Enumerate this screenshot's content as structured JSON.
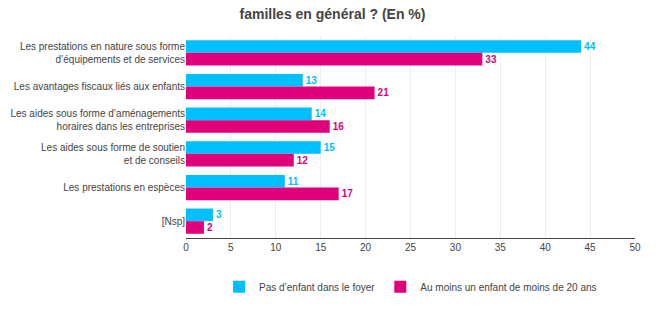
{
  "chart_data": {
    "type": "bar",
    "orientation": "horizontal",
    "title": "familles en général ? (En %)",
    "categories": [
      "Les prestations en nature sous forme\nd’équipements et de services",
      "Les avantages fiscaux liés aux enfants",
      "Les aides sous forme d’aménagements\nhoraires dans les entreprises",
      "Les aides sous forme de soutien\net de conseils",
      "Les prestations en espèces",
      "[Nsp]"
    ],
    "series": [
      {
        "name": "Pas d’enfant dans le foyer",
        "color": "#00BFFF",
        "values": [
          44,
          13,
          14,
          15,
          11,
          3
        ]
      },
      {
        "name": "Au moins un enfant de moins de 20 ans",
        "color": "#E0007A",
        "values": [
          33,
          21,
          16,
          12,
          17,
          2
        ]
      }
    ],
    "xlim": [
      0,
      50
    ],
    "xticks": [
      0,
      5,
      10,
      15,
      20,
      25,
      30,
      35,
      40,
      45,
      50
    ],
    "grid": true,
    "legend": "bottom",
    "data_labels": true
  }
}
